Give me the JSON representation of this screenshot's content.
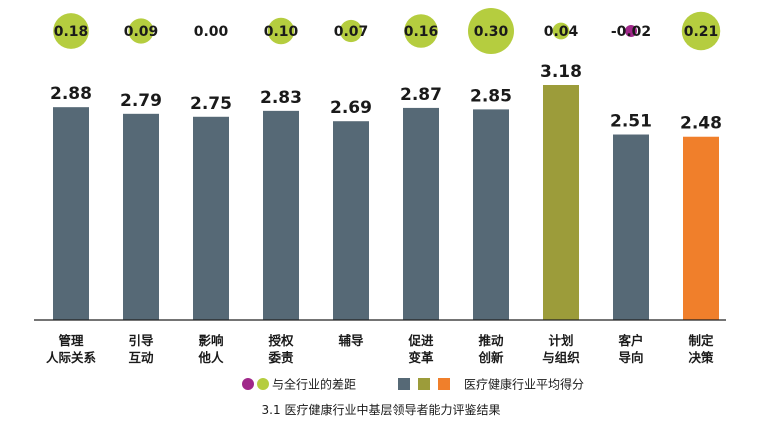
{
  "chart_data": {
    "type": "bar",
    "caption": "3.1 医疗健康行业中基层领导者能力评鉴结果",
    "categories": [
      [
        "管理",
        "人际关系"
      ],
      [
        "引导",
        "互动"
      ],
      [
        "影响",
        "他人"
      ],
      [
        "授权",
        "委责"
      ],
      [
        "辅导"
      ],
      [
        "促进",
        "变革"
      ],
      [
        "推动",
        "创新"
      ],
      [
        "计划",
        "与组织"
      ],
      [
        "客户",
        "导向"
      ],
      [
        "制定",
        "决策"
      ]
    ],
    "values": [
      2.88,
      2.79,
      2.75,
      2.83,
      2.69,
      2.87,
      2.85,
      3.18,
      2.51,
      2.48
    ],
    "value_labels": [
      "2.88",
      "2.79",
      "2.75",
      "2.83",
      "2.69",
      "2.87",
      "2.85",
      "3.18",
      "2.51",
      "2.48"
    ],
    "diff_values": [
      0.18,
      0.09,
      0.0,
      0.1,
      0.07,
      0.16,
      0.3,
      0.04,
      -0.02,
      0.21
    ],
    "diff_labels": [
      "0.18",
      "0.09",
      "0.00",
      "0.10",
      "0.07",
      "0.16",
      "0.30",
      "0.04",
      "-0.02",
      "0.21"
    ],
    "bar_colors": [
      "#566976",
      "#566976",
      "#566976",
      "#566976",
      "#566976",
      "#566976",
      "#566976",
      "#9c9c3a",
      "#566976",
      "#f07f2b"
    ],
    "legend": [
      {
        "text": "与全行业的差距",
        "swatches": [
          "#a0288a",
          "#b5cd3f"
        ],
        "shape": "circle"
      },
      {
        "text": "医疗健康行业平均得分",
        "swatches": [
          "#566976",
          "#9c9c3a",
          "#f07f2b"
        ],
        "shape": "square"
      }
    ],
    "colors": {
      "positive_bubble": "#b5cd3f",
      "negative_bubble": "#a0288a",
      "axis": "#222222"
    },
    "ylim": [
      0,
      3.18
    ]
  }
}
